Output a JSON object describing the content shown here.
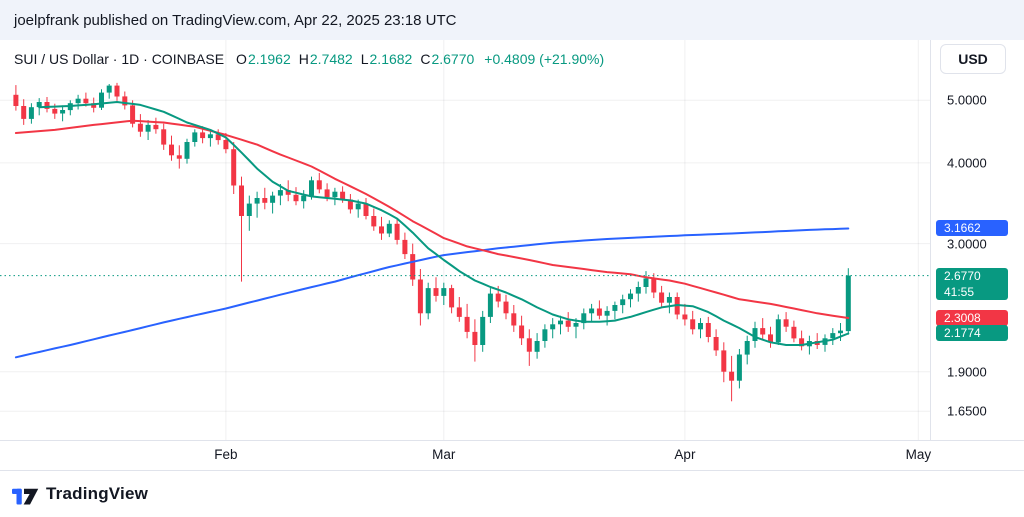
{
  "published_bar": {
    "text": "joelpfrank published on TradingView.com, Apr 22, 2025 23:18 UTC"
  },
  "header": {
    "symbol_line": "SUI / US Dollar · 1D · COINBASE",
    "ohlc": [
      {
        "label": "O",
        "value": "2.1962"
      },
      {
        "label": "H",
        "value": "2.7482"
      },
      {
        "label": "L",
        "value": "2.1682"
      },
      {
        "label": "C",
        "value": "2.6770"
      }
    ],
    "change": "+0.4809 (+21.90%)"
  },
  "currency_button": "USD",
  "colors": {
    "up": "#089981",
    "down": "#F23645",
    "ma_long": "#2962FF",
    "ma_mid": "#F23645",
    "ma_fast": "#089981",
    "text": "#131722",
    "toolbar_bg": "#F0F3FA"
  },
  "price_axis": {
    "ticks": [
      {
        "label": "5.0000",
        "value": 5.0
      },
      {
        "label": "4.0000",
        "value": 4.0
      },
      {
        "label": "3.0000",
        "value": 3.0
      },
      {
        "label": "1.9000",
        "value": 1.9
      },
      {
        "label": "1.6500",
        "value": 1.65
      }
    ],
    "badges": [
      {
        "name": "ma-long-value",
        "label": "3.1662",
        "value": 3.1662,
        "color": "#2962FF"
      },
      {
        "name": "last-price",
        "label": "2.6770",
        "value": 2.677,
        "countdown": "41:55",
        "color": "#089981"
      },
      {
        "name": "ma-mid-value",
        "label": "2.3008",
        "value": 2.3008,
        "color": "#F23645"
      },
      {
        "name": "ma-fast-value",
        "label": "2.1774",
        "value": 2.1774,
        "color": "#089981"
      }
    ]
  },
  "time_axis": {
    "labels": [
      {
        "label": "Feb",
        "day": 27
      },
      {
        "label": "Mar",
        "day": 55
      },
      {
        "label": "Apr",
        "day": 86
      },
      {
        "label": "May",
        "day": 116
      }
    ]
  },
  "footer": {
    "brand": "TradingView"
  },
  "chart_data": {
    "type": "candlestick",
    "symbol": "SUI / US Dollar",
    "interval": "1D",
    "exchange": "COINBASE",
    "ohlc_last": {
      "open": 2.1962,
      "high": 2.7482,
      "low": 2.1682,
      "close": 2.677,
      "change": 0.4809,
      "change_pct": 21.9
    },
    "start_date": "2025-01-05",
    "end_date": "2025-04-22",
    "y_scale": "log",
    "y_axis_ticks": [
      5.0,
      4.0,
      3.0,
      1.9,
      1.65
    ],
    "price_range_top": 5.3,
    "price_range_bottom": 1.5,
    "total_days_visible": 118,
    "candles": [
      [
        5.1,
        5.28,
        4.82,
        4.9
      ],
      [
        4.9,
        5.02,
        4.58,
        4.68
      ],
      [
        4.68,
        4.95,
        4.6,
        4.88
      ],
      [
        4.88,
        5.04,
        4.74,
        4.97
      ],
      [
        4.97,
        5.06,
        4.79,
        4.85
      ],
      [
        4.85,
        4.94,
        4.68,
        4.77
      ],
      [
        4.77,
        4.91,
        4.64,
        4.83
      ],
      [
        4.83,
        5.0,
        4.74,
        4.95
      ],
      [
        4.95,
        5.1,
        4.84,
        5.03
      ],
      [
        5.03,
        5.14,
        4.89,
        4.95
      ],
      [
        4.95,
        5.05,
        4.79,
        4.87
      ],
      [
        4.87,
        5.2,
        4.83,
        5.14
      ],
      [
        5.14,
        5.3,
        5.03,
        5.27
      ],
      [
        5.27,
        5.32,
        4.99,
        5.07
      ],
      [
        5.07,
        5.16,
        4.84,
        4.91
      ],
      [
        4.91,
        5.0,
        4.54,
        4.6
      ],
      [
        4.6,
        4.76,
        4.39,
        4.47
      ],
      [
        4.47,
        4.66,
        4.34,
        4.58
      ],
      [
        4.58,
        4.7,
        4.44,
        4.51
      ],
      [
        4.51,
        4.6,
        4.19,
        4.27
      ],
      [
        4.27,
        4.41,
        4.03,
        4.11
      ],
      [
        4.11,
        4.26,
        3.92,
        4.06
      ],
      [
        4.06,
        4.36,
        3.99,
        4.31
      ],
      [
        4.31,
        4.51,
        4.24,
        4.46
      ],
      [
        4.46,
        4.56,
        4.29,
        4.37
      ],
      [
        4.37,
        4.49,
        4.24,
        4.43
      ],
      [
        4.43,
        4.51,
        4.27,
        4.34
      ],
      [
        4.34,
        4.45,
        4.14,
        4.2
      ],
      [
        4.2,
        4.31,
        3.58,
        3.69
      ],
      [
        3.69,
        3.81,
        2.62,
        3.31
      ],
      [
        3.31,
        3.56,
        3.14,
        3.46
      ],
      [
        3.46,
        3.61,
        3.29,
        3.53
      ],
      [
        3.53,
        3.66,
        3.39,
        3.47
      ],
      [
        3.47,
        3.61,
        3.34,
        3.56
      ],
      [
        3.56,
        3.71,
        3.44,
        3.63
      ],
      [
        3.63,
        3.76,
        3.49,
        3.57
      ],
      [
        3.57,
        3.67,
        3.44,
        3.49
      ],
      [
        3.49,
        3.63,
        3.4,
        3.56
      ],
      [
        3.56,
        3.81,
        3.51,
        3.76
      ],
      [
        3.76,
        3.86,
        3.59,
        3.64
      ],
      [
        3.64,
        3.72,
        3.49,
        3.54
      ],
      [
        3.54,
        3.66,
        3.44,
        3.61
      ],
      [
        3.61,
        3.68,
        3.47,
        3.51
      ],
      [
        3.51,
        3.58,
        3.34,
        3.39
      ],
      [
        3.39,
        3.51,
        3.29,
        3.46
      ],
      [
        3.46,
        3.53,
        3.27,
        3.31
      ],
      [
        3.31,
        3.4,
        3.14,
        3.19
      ],
      [
        3.19,
        3.3,
        3.04,
        3.11
      ],
      [
        3.11,
        3.26,
        3.07,
        3.22
      ],
      [
        3.22,
        3.28,
        2.99,
        3.04
      ],
      [
        3.04,
        3.12,
        2.84,
        2.89
      ],
      [
        2.89,
        3.0,
        2.58,
        2.64
      ],
      [
        2.64,
        2.74,
        2.24,
        2.34
      ],
      [
        2.34,
        2.61,
        2.29,
        2.56
      ],
      [
        2.56,
        2.66,
        2.44,
        2.49
      ],
      [
        2.49,
        2.61,
        2.41,
        2.56
      ],
      [
        2.56,
        2.59,
        2.34,
        2.39
      ],
      [
        2.39,
        2.48,
        2.27,
        2.31
      ],
      [
        2.31,
        2.42,
        2.14,
        2.19
      ],
      [
        2.19,
        2.29,
        1.97,
        2.09
      ],
      [
        2.09,
        2.36,
        2.04,
        2.31
      ],
      [
        2.31,
        2.56,
        2.26,
        2.51
      ],
      [
        2.51,
        2.58,
        2.39,
        2.44
      ],
      [
        2.44,
        2.5,
        2.29,
        2.34
      ],
      [
        2.34,
        2.41,
        2.19,
        2.24
      ],
      [
        2.24,
        2.32,
        2.09,
        2.14
      ],
      [
        2.14,
        2.21,
        1.94,
        2.04
      ],
      [
        2.04,
        2.18,
        1.99,
        2.12
      ],
      [
        2.12,
        2.25,
        2.07,
        2.21
      ],
      [
        2.21,
        2.3,
        2.14,
        2.25
      ],
      [
        2.25,
        2.32,
        2.17,
        2.28
      ],
      [
        2.28,
        2.35,
        2.19,
        2.23
      ],
      [
        2.23,
        2.3,
        2.14,
        2.26
      ],
      [
        2.26,
        2.38,
        2.21,
        2.34
      ],
      [
        2.34,
        2.42,
        2.27,
        2.38
      ],
      [
        2.38,
        2.45,
        2.29,
        2.32
      ],
      [
        2.32,
        2.4,
        2.24,
        2.36
      ],
      [
        2.36,
        2.44,
        2.29,
        2.41
      ],
      [
        2.41,
        2.5,
        2.34,
        2.46
      ],
      [
        2.46,
        2.55,
        2.39,
        2.51
      ],
      [
        2.51,
        2.62,
        2.44,
        2.57
      ],
      [
        2.57,
        2.72,
        2.51,
        2.65
      ],
      [
        2.65,
        2.7,
        2.47,
        2.52
      ],
      [
        2.52,
        2.58,
        2.39,
        2.43
      ],
      [
        2.43,
        2.52,
        2.34,
        2.48
      ],
      [
        2.48,
        2.52,
        2.29,
        2.33
      ],
      [
        2.33,
        2.42,
        2.24,
        2.29
      ],
      [
        2.29,
        2.36,
        2.17,
        2.21
      ],
      [
        2.21,
        2.3,
        2.14,
        2.26
      ],
      [
        2.26,
        2.31,
        2.11,
        2.15
      ],
      [
        2.15,
        2.21,
        2.01,
        2.05
      ],
      [
        2.05,
        2.11,
        1.83,
        1.9
      ],
      [
        1.9,
        2.01,
        1.71,
        1.84
      ],
      [
        1.84,
        2.06,
        1.79,
        2.02
      ],
      [
        2.02,
        2.16,
        1.95,
        2.12
      ],
      [
        2.12,
        2.27,
        2.07,
        2.22
      ],
      [
        2.22,
        2.3,
        2.13,
        2.17
      ],
      [
        2.17,
        2.23,
        2.07,
        2.11
      ],
      [
        2.11,
        2.33,
        2.09,
        2.29
      ],
      [
        2.29,
        2.35,
        2.19,
        2.23
      ],
      [
        2.23,
        2.28,
        2.11,
        2.14
      ],
      [
        2.14,
        2.2,
        2.05,
        2.08
      ],
      [
        2.08,
        2.16,
        2.02,
        2.12
      ],
      [
        2.12,
        2.18,
        2.06,
        2.09
      ],
      [
        2.09,
        2.17,
        2.04,
        2.14
      ],
      [
        2.14,
        2.22,
        2.09,
        2.18
      ],
      [
        2.18,
        2.26,
        2.12,
        2.2
      ],
      [
        2.1962,
        2.7482,
        2.1682,
        2.677
      ]
    ],
    "moving_averages": [
      {
        "name": "ma-long",
        "color": "#2962FF",
        "last_value": 3.1662,
        "points": [
          [
            0,
            2.0
          ],
          [
            7,
            2.09
          ],
          [
            14,
            2.19
          ],
          [
            20,
            2.28
          ],
          [
            27,
            2.38
          ],
          [
            34,
            2.5
          ],
          [
            41,
            2.62
          ],
          [
            48,
            2.76
          ],
          [
            55,
            2.88
          ],
          [
            62,
            2.95
          ],
          [
            69,
            3.01
          ],
          [
            76,
            3.05
          ],
          [
            81,
            3.07
          ],
          [
            86,
            3.09
          ],
          [
            92,
            3.11
          ],
          [
            97,
            3.13
          ],
          [
            102,
            3.15
          ],
          [
            107,
            3.1662
          ]
        ]
      },
      {
        "name": "ma-mid",
        "color": "#F23645",
        "last_value": 2.3008,
        "points": [
          [
            0,
            4.45
          ],
          [
            5,
            4.5
          ],
          [
            10,
            4.58
          ],
          [
            15,
            4.65
          ],
          [
            19,
            4.62
          ],
          [
            23,
            4.55
          ],
          [
            27,
            4.42
          ],
          [
            31,
            4.27
          ],
          [
            34,
            4.12
          ],
          [
            38,
            3.95
          ],
          [
            41,
            3.78
          ],
          [
            45,
            3.58
          ],
          [
            48,
            3.42
          ],
          [
            51,
            3.25
          ],
          [
            55,
            3.06
          ],
          [
            58,
            2.97
          ],
          [
            62,
            2.89
          ],
          [
            66,
            2.83
          ],
          [
            69,
            2.78
          ],
          [
            73,
            2.74
          ],
          [
            76,
            2.71
          ],
          [
            79,
            2.69
          ],
          [
            81,
            2.66
          ],
          [
            84,
            2.63
          ],
          [
            86,
            2.6
          ],
          [
            88,
            2.56
          ],
          [
            90,
            2.52
          ],
          [
            93,
            2.46
          ],
          [
            95,
            2.44
          ],
          [
            97,
            2.42
          ],
          [
            100,
            2.38
          ],
          [
            103,
            2.34
          ],
          [
            105,
            2.32
          ],
          [
            107,
            2.3008
          ]
        ]
      },
      {
        "name": "ma-fast",
        "color": "#089981",
        "last_value": 2.1774,
        "points": [
          [
            3,
            4.88
          ],
          [
            7,
            4.9
          ],
          [
            10,
            4.93
          ],
          [
            13,
            4.97
          ],
          [
            16,
            4.92
          ],
          [
            19,
            4.8
          ],
          [
            22,
            4.62
          ],
          [
            25,
            4.5
          ],
          [
            27,
            4.38
          ],
          [
            29,
            4.15
          ],
          [
            31,
            3.92
          ],
          [
            33,
            3.74
          ],
          [
            35,
            3.62
          ],
          [
            38,
            3.55
          ],
          [
            41,
            3.52
          ],
          [
            43,
            3.5
          ],
          [
            45,
            3.46
          ],
          [
            47,
            3.38
          ],
          [
            49,
            3.28
          ],
          [
            51,
            3.12
          ],
          [
            53,
            2.95
          ],
          [
            55,
            2.83
          ],
          [
            57,
            2.72
          ],
          [
            59,
            2.63
          ],
          [
            61,
            2.57
          ],
          [
            63,
            2.52
          ],
          [
            65,
            2.46
          ],
          [
            67,
            2.39
          ],
          [
            69,
            2.33
          ],
          [
            71,
            2.29
          ],
          [
            73,
            2.27
          ],
          [
            75,
            2.27
          ],
          [
            77,
            2.28
          ],
          [
            79,
            2.31
          ],
          [
            81,
            2.35
          ],
          [
            83,
            2.39
          ],
          [
            85,
            2.41
          ],
          [
            87,
            2.4
          ],
          [
            89,
            2.35
          ],
          [
            91,
            2.28
          ],
          [
            93,
            2.22
          ],
          [
            95,
            2.15
          ],
          [
            97,
            2.11
          ],
          [
            99,
            2.09
          ],
          [
            101,
            2.09
          ],
          [
            103,
            2.11
          ],
          [
            105,
            2.13
          ],
          [
            107,
            2.1774
          ]
        ]
      }
    ],
    "close_line": {
      "value": 2.677,
      "style": "dotted",
      "color": "#089981"
    }
  }
}
